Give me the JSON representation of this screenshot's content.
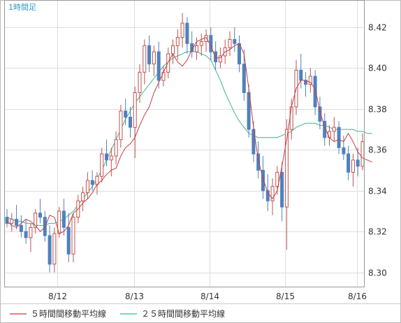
{
  "chart_data": {
    "type": "candlestick",
    "title": "1時間足",
    "x_tick_labels": [
      "8/12",
      "8/13",
      "8/14",
      "8/15",
      "8/16"
    ],
    "y_tick_labels": [
      "8.30",
      "8.32",
      "8.34",
      "8.36",
      "8.38",
      "8.40",
      "8.42"
    ],
    "ylim": [
      8.293,
      8.433
    ],
    "grid": true,
    "legend_position": "bottom",
    "series": [
      {
        "name": "５時間間移動平均線",
        "type": "line",
        "color": "#c83c3c",
        "values": [
          8.325,
          8.323,
          8.322,
          8.324,
          8.326,
          8.325,
          8.323,
          8.32,
          8.322,
          8.328,
          8.327,
          8.319,
          8.32,
          8.323,
          8.329,
          8.331,
          8.334,
          8.336,
          8.339,
          8.343,
          8.345,
          8.348,
          8.35,
          8.351,
          8.357,
          8.361,
          8.363,
          8.366,
          8.372,
          8.377,
          8.381,
          8.388,
          8.393,
          8.398,
          8.403,
          8.407,
          8.403,
          8.401,
          8.404,
          8.409,
          8.413,
          8.414,
          8.415,
          8.411,
          8.405,
          8.405,
          8.408,
          8.409,
          8.411,
          8.412,
          8.407,
          8.39,
          8.371,
          8.355,
          8.346,
          8.339,
          8.336,
          8.34,
          8.352,
          8.365,
          8.381,
          8.39,
          8.394,
          8.394,
          8.393,
          8.39,
          8.379,
          8.371,
          8.366,
          8.364,
          8.365,
          8.364,
          8.368,
          8.364,
          8.359,
          8.356,
          8.355,
          8.354
        ]
      },
      {
        "name": "２５時間間移動平均線",
        "type": "line",
        "color": "#3cb48c",
        "values": [
          8.327,
          8.326,
          8.325,
          8.325,
          8.324,
          8.324,
          8.323,
          8.323,
          8.323,
          8.324,
          8.324,
          8.325,
          8.326,
          8.328,
          8.33,
          8.333,
          8.336,
          8.339,
          8.342,
          8.346,
          8.35,
          8.355,
          8.36,
          8.365,
          8.37,
          8.375,
          8.379,
          8.383,
          8.386,
          8.389,
          8.392,
          8.395,
          8.398,
          8.401,
          8.403,
          8.405,
          8.406,
          8.407,
          8.408,
          8.408,
          8.408,
          8.407,
          8.406,
          8.404,
          8.399,
          8.394,
          8.388,
          8.383,
          8.378,
          8.374,
          8.371,
          8.368,
          8.367,
          8.366,
          8.366,
          8.366,
          8.366,
          8.366,
          8.367,
          8.368,
          8.369,
          8.371,
          8.372,
          8.373,
          8.373,
          8.373,
          8.372,
          8.372,
          8.371,
          8.37,
          8.37,
          8.37,
          8.37,
          8.37,
          8.369,
          8.369,
          8.368,
          8.368
        ]
      }
    ],
    "candles": [
      {
        "o": 8.327,
        "h": 8.331,
        "l": 8.322,
        "c": 8.324
      },
      {
        "o": 8.324,
        "h": 8.329,
        "l": 8.32,
        "c": 8.326
      },
      {
        "o": 8.326,
        "h": 8.333,
        "l": 8.321,
        "c": 8.323
      },
      {
        "o": 8.323,
        "h": 8.328,
        "l": 8.317,
        "c": 8.32
      },
      {
        "o": 8.32,
        "h": 8.326,
        "l": 8.314,
        "c": 8.317
      },
      {
        "o": 8.317,
        "h": 8.324,
        "l": 8.31,
        "c": 8.322
      },
      {
        "o": 8.322,
        "h": 8.331,
        "l": 8.319,
        "c": 8.329
      },
      {
        "o": 8.329,
        "h": 8.336,
        "l": 8.324,
        "c": 8.327
      },
      {
        "o": 8.327,
        "h": 8.33,
        "l": 8.315,
        "c": 8.318
      },
      {
        "o": 8.318,
        "h": 8.323,
        "l": 8.3,
        "c": 8.304
      },
      {
        "o": 8.304,
        "h": 8.322,
        "l": 8.3,
        "c": 8.319
      },
      {
        "o": 8.319,
        "h": 8.332,
        "l": 8.317,
        "c": 8.33
      },
      {
        "o": 8.33,
        "h": 8.336,
        "l": 8.318,
        "c": 8.322
      },
      {
        "o": 8.322,
        "h": 8.329,
        "l": 8.305,
        "c": 8.309
      },
      {
        "o": 8.309,
        "h": 8.329,
        "l": 8.305,
        "c": 8.327
      },
      {
        "o": 8.327,
        "h": 8.338,
        "l": 8.324,
        "c": 8.335
      },
      {
        "o": 8.335,
        "h": 8.342,
        "l": 8.33,
        "c": 8.339
      },
      {
        "o": 8.339,
        "h": 8.349,
        "l": 8.336,
        "c": 8.345
      },
      {
        "o": 8.345,
        "h": 8.35,
        "l": 8.34,
        "c": 8.343
      },
      {
        "o": 8.343,
        "h": 8.349,
        "l": 8.338,
        "c": 8.347
      },
      {
        "o": 8.347,
        "h": 8.361,
        "l": 8.344,
        "c": 8.358
      },
      {
        "o": 8.358,
        "h": 8.365,
        "l": 8.352,
        "c": 8.355
      },
      {
        "o": 8.355,
        "h": 8.361,
        "l": 8.347,
        "c": 8.357
      },
      {
        "o": 8.357,
        "h": 8.369,
        "l": 8.353,
        "c": 8.365
      },
      {
        "o": 8.365,
        "h": 8.382,
        "l": 8.361,
        "c": 8.379
      },
      {
        "o": 8.379,
        "h": 8.385,
        "l": 8.372,
        "c": 8.376
      },
      {
        "o": 8.376,
        "h": 8.381,
        "l": 8.366,
        "c": 8.371
      },
      {
        "o": 8.371,
        "h": 8.391,
        "l": 8.356,
        "c": 8.388
      },
      {
        "o": 8.388,
        "h": 8.402,
        "l": 8.383,
        "c": 8.398
      },
      {
        "o": 8.398,
        "h": 8.414,
        "l": 8.392,
        "c": 8.411
      },
      {
        "o": 8.411,
        "h": 8.416,
        "l": 8.398,
        "c": 8.402
      },
      {
        "o": 8.402,
        "h": 8.411,
        "l": 8.396,
        "c": 8.408
      },
      {
        "o": 8.408,
        "h": 8.413,
        "l": 8.39,
        "c": 8.394
      },
      {
        "o": 8.394,
        "h": 8.401,
        "l": 8.391,
        "c": 8.398
      },
      {
        "o": 8.398,
        "h": 8.41,
        "l": 8.395,
        "c": 8.407
      },
      {
        "o": 8.407,
        "h": 8.414,
        "l": 8.402,
        "c": 8.411
      },
      {
        "o": 8.411,
        "h": 8.419,
        "l": 8.404,
        "c": 8.415
      },
      {
        "o": 8.415,
        "h": 8.427,
        "l": 8.41,
        "c": 8.422
      },
      {
        "o": 8.422,
        "h": 8.425,
        "l": 8.407,
        "c": 8.412
      },
      {
        "o": 8.412,
        "h": 8.418,
        "l": 8.405,
        "c": 8.408
      },
      {
        "o": 8.408,
        "h": 8.415,
        "l": 8.404,
        "c": 8.411
      },
      {
        "o": 8.411,
        "h": 8.417,
        "l": 8.406,
        "c": 8.413
      },
      {
        "o": 8.413,
        "h": 8.419,
        "l": 8.408,
        "c": 8.416
      },
      {
        "o": 8.416,
        "h": 8.42,
        "l": 8.404,
        "c": 8.408
      },
      {
        "o": 8.408,
        "h": 8.413,
        "l": 8.399,
        "c": 8.403
      },
      {
        "o": 8.403,
        "h": 8.41,
        "l": 8.4,
        "c": 8.406
      },
      {
        "o": 8.406,
        "h": 8.414,
        "l": 8.402,
        "c": 8.41
      },
      {
        "o": 8.41,
        "h": 8.418,
        "l": 8.406,
        "c": 8.414
      },
      {
        "o": 8.414,
        "h": 8.42,
        "l": 8.408,
        "c": 8.412
      },
      {
        "o": 8.412,
        "h": 8.416,
        "l": 8.398,
        "c": 8.402
      },
      {
        "o": 8.402,
        "h": 8.409,
        "l": 8.384,
        "c": 8.388
      },
      {
        "o": 8.388,
        "h": 8.392,
        "l": 8.366,
        "c": 8.37
      },
      {
        "o": 8.37,
        "h": 8.374,
        "l": 8.354,
        "c": 8.358
      },
      {
        "o": 8.358,
        "h": 8.364,
        "l": 8.346,
        "c": 8.35
      },
      {
        "o": 8.35,
        "h": 8.357,
        "l": 8.336,
        "c": 8.34
      },
      {
        "o": 8.34,
        "h": 8.348,
        "l": 8.33,
        "c": 8.335
      },
      {
        "o": 8.335,
        "h": 8.346,
        "l": 8.328,
        "c": 8.342
      },
      {
        "o": 8.342,
        "h": 8.352,
        "l": 8.338,
        "c": 8.349
      },
      {
        "o": 8.349,
        "h": 8.354,
        "l": 8.325,
        "c": 8.332
      },
      {
        "o": 8.332,
        "h": 8.375,
        "l": 8.311,
        "c": 8.37
      },
      {
        "o": 8.37,
        "h": 8.385,
        "l": 8.365,
        "c": 8.381
      },
      {
        "o": 8.381,
        "h": 8.404,
        "l": 8.377,
        "c": 8.399
      },
      {
        "o": 8.399,
        "h": 8.407,
        "l": 8.39,
        "c": 8.394
      },
      {
        "o": 8.394,
        "h": 8.398,
        "l": 8.386,
        "c": 8.392
      },
      {
        "o": 8.392,
        "h": 8.4,
        "l": 8.388,
        "c": 8.396
      },
      {
        "o": 8.396,
        "h": 8.399,
        "l": 8.377,
        "c": 8.381
      },
      {
        "o": 8.381,
        "h": 8.386,
        "l": 8.37,
        "c": 8.374
      },
      {
        "o": 8.374,
        "h": 8.378,
        "l": 8.362,
        "c": 8.366
      },
      {
        "o": 8.366,
        "h": 8.372,
        "l": 8.362,
        "c": 8.369
      },
      {
        "o": 8.369,
        "h": 8.376,
        "l": 8.364,
        "c": 8.371
      },
      {
        "o": 8.371,
        "h": 8.374,
        "l": 8.358,
        "c": 8.361
      },
      {
        "o": 8.361,
        "h": 8.367,
        "l": 8.355,
        "c": 8.358
      },
      {
        "o": 8.358,
        "h": 8.362,
        "l": 8.345,
        "c": 8.349
      },
      {
        "o": 8.349,
        "h": 8.358,
        "l": 8.342,
        "c": 8.355
      },
      {
        "o": 8.355,
        "h": 8.361,
        "l": 8.347,
        "c": 8.352
      },
      {
        "o": 8.352,
        "h": 8.368,
        "l": 8.35,
        "c": 8.364
      }
    ],
    "up_color": "#c0504d",
    "down_color": "#4f81bd"
  }
}
